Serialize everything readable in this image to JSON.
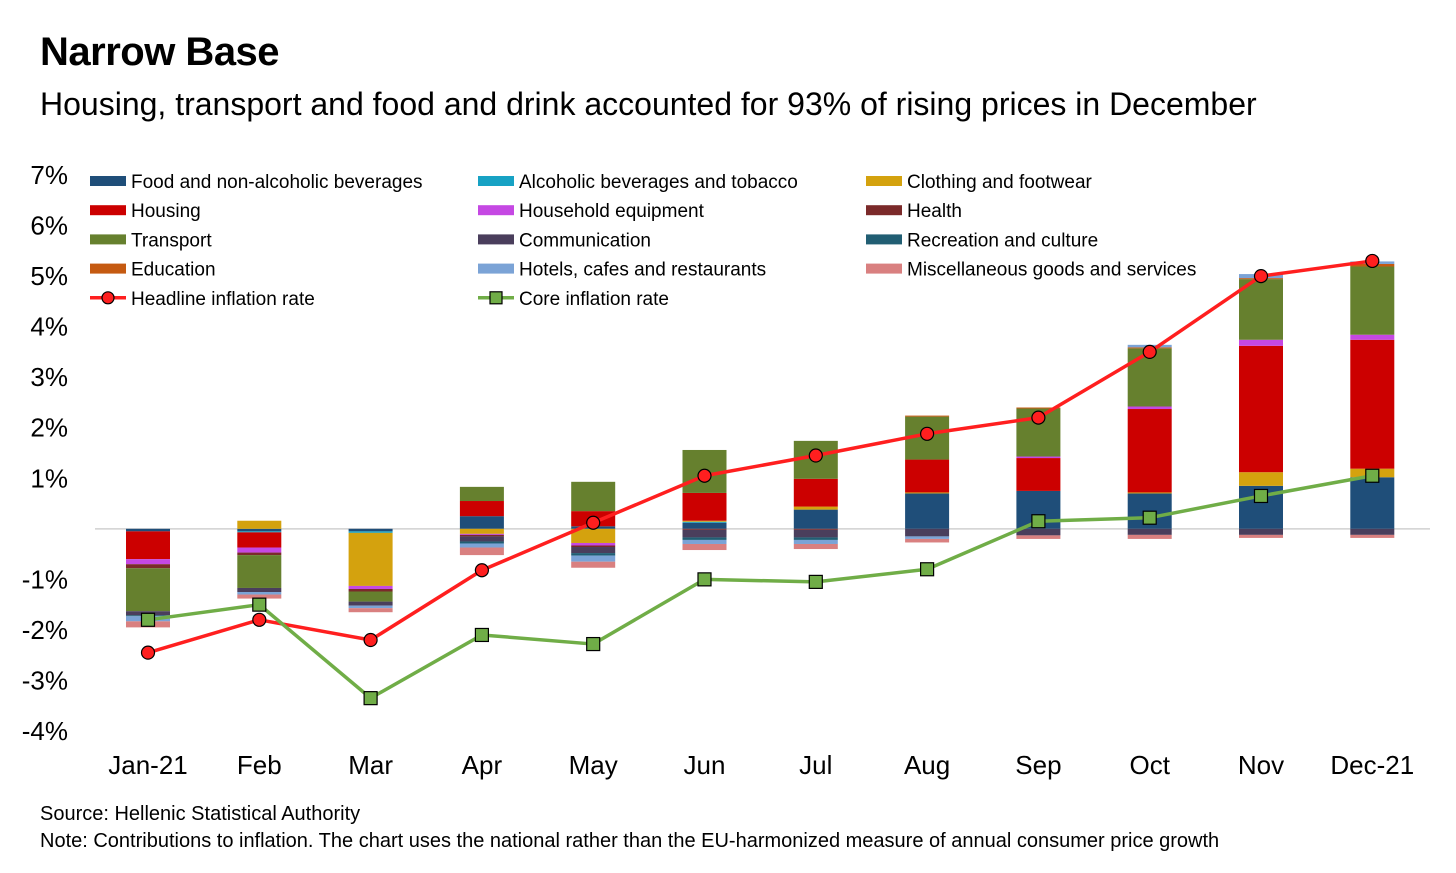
{
  "title": "Narrow Base",
  "subtitle": "Housing, transport and food and drink accounted for 93% of rising prices in December",
  "source": "Source: Hellenic Statistical Authority",
  "note": "Note: Contributions to inflation. The chart uses the national rather than the EU-harmonized measure of annual consumer price growth",
  "chart_data": {
    "type": "bar",
    "stacked": true,
    "categories": [
      "Jan-21",
      "Feb",
      "Mar",
      "Apr",
      "May",
      "Jun",
      "Jul",
      "Aug",
      "Sep",
      "Oct",
      "Nov",
      "Dec-21"
    ],
    "ylim": [
      -4,
      7
    ],
    "yticks": [
      -4,
      -3,
      -2,
      -1,
      1,
      2,
      3,
      4,
      5,
      6,
      7
    ],
    "ytick_labels": [
      "-4%",
      "-3%",
      "-2%",
      "-1%",
      "1%",
      "2%",
      "3%",
      "4%",
      "5%",
      "6%",
      "7%"
    ],
    "grid": false,
    "legend_position": "top-left",
    "series": [
      {
        "name": "Food and non-alcoholic beverages",
        "color": "#1F4E79",
        "values": [
          -0.05,
          -0.05,
          -0.05,
          0.25,
          0.05,
          0.12,
          0.38,
          0.7,
          0.75,
          0.7,
          0.85,
          1.02
        ]
      },
      {
        "name": "Alcoholic beverages and tobacco",
        "color": "#17A2C4",
        "values": [
          0,
          -0.02,
          -0.03,
          0,
          0,
          0.02,
          0,
          0,
          0,
          0,
          0,
          0
        ]
      },
      {
        "name": "Clothing and footwear",
        "color": "#D4A20E",
        "values": [
          0,
          0.16,
          -1.05,
          -0.1,
          -0.28,
          0.02,
          0.06,
          0.02,
          0,
          0.02,
          0.27,
          0.17
        ]
      },
      {
        "name": "Housing",
        "color": "#CC0000",
        "values": [
          -0.55,
          -0.3,
          0,
          0.3,
          0.3,
          0.55,
          0.55,
          0.65,
          0.65,
          1.65,
          2.5,
          2.55
        ]
      },
      {
        "name": "Household equipment",
        "color": "#C548E3",
        "values": [
          -0.1,
          -0.1,
          -0.06,
          -0.02,
          -0.05,
          0,
          0,
          0,
          0.03,
          0.05,
          0.12,
          0.1
        ]
      },
      {
        "name": "Health",
        "color": "#7B2A2A",
        "values": [
          -0.08,
          -0.05,
          -0.05,
          -0.03,
          -0.03,
          -0.02,
          -0.02,
          0,
          0,
          0,
          0,
          0
        ]
      },
      {
        "name": "Transport",
        "color": "#66802E",
        "values": [
          -0.85,
          -0.65,
          -0.2,
          0.28,
          0.58,
          0.85,
          0.75,
          0.85,
          0.95,
          1.15,
          1.2,
          1.35
        ]
      },
      {
        "name": "Communication",
        "color": "#4A3E5C",
        "values": [
          -0.08,
          -0.08,
          -0.08,
          -0.1,
          -0.12,
          -0.15,
          -0.15,
          -0.15,
          -0.13,
          -0.12,
          -0.12,
          -0.12
        ]
      },
      {
        "name": "Recreation and culture",
        "color": "#215E73",
        "values": [
          -0.02,
          0,
          0,
          -0.04,
          -0.05,
          -0.05,
          -0.05,
          0,
          0,
          0,
          0,
          0
        ]
      },
      {
        "name": "Education",
        "color": "#C55A11",
        "values": [
          0,
          0,
          0,
          0,
          0,
          0,
          0,
          0.02,
          0.02,
          0.02,
          0.02,
          0.05
        ]
      },
      {
        "name": "Hotels, cafes and restaurants",
        "color": "#7BA3D6",
        "values": [
          -0.1,
          -0.05,
          -0.05,
          -0.08,
          -0.12,
          -0.08,
          -0.08,
          -0.05,
          0,
          0.05,
          0.08,
          0.05
        ]
      },
      {
        "name": "Miscellaneous goods and services",
        "color": "#D98080",
        "values": [
          -0.12,
          -0.08,
          -0.08,
          -0.15,
          -0.12,
          -0.12,
          -0.1,
          -0.07,
          -0.07,
          -0.08,
          -0.06,
          -0.06
        ]
      }
    ],
    "lines": [
      {
        "name": "Headline inflation rate",
        "color": "#FF1F1F",
        "marker": "circle",
        "values": [
          -2.45,
          -1.8,
          -2.2,
          -0.82,
          0.12,
          1.05,
          1.45,
          1.88,
          2.2,
          3.5,
          5.0,
          5.3
        ]
      },
      {
        "name": "Core inflation rate",
        "color": "#70AD47",
        "marker": "square",
        "values": [
          -1.8,
          -1.5,
          -3.35,
          -2.1,
          -2.28,
          -1.0,
          -1.05,
          -0.8,
          0.15,
          0.22,
          0.65,
          1.05
        ]
      }
    ]
  }
}
